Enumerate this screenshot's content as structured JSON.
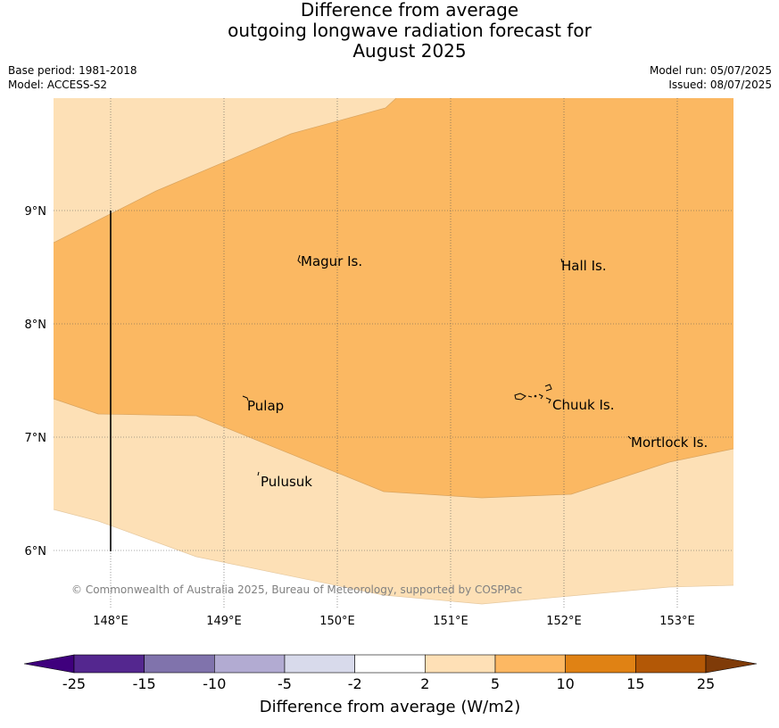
{
  "title": {
    "line1": "Difference from average",
    "line2": "outgoing longwave radiation forecast for",
    "line3": "August 2025"
  },
  "meta": {
    "base_period": "Base period: 1981-2018",
    "model": "Model: ACCESS-S2",
    "model_run": "Model run: 05/07/2025",
    "issued": "Issued: 08/07/2025"
  },
  "map": {
    "lon_ticks": [
      "148°E",
      "149°E",
      "150°E",
      "151°E",
      "152°E",
      "153°E"
    ],
    "lat_ticks": [
      "9°N",
      "8°N",
      "7°N",
      "6°N"
    ],
    "places": [
      {
        "name": "Magur Is."
      },
      {
        "name": "Hall Is."
      },
      {
        "name": "Pulap"
      },
      {
        "name": "Chuuk Is."
      },
      {
        "name": "Mortlock Is."
      },
      {
        "name": "Pulusuk"
      }
    ],
    "copyright": "© Commonwealth of Australia 2025, Bureau of Meteorology, supported by COSPPac",
    "fill_colors": {
      "low": "#fde0b6",
      "high": "#fbb862"
    }
  },
  "colorbar": {
    "colors": [
      "#3f007d",
      "#54278f",
      "#8073ac",
      "#b2abd2",
      "#d8daeb",
      "#ffffff",
      "#fee0b6",
      "#fdb863",
      "#e08214",
      "#b35806",
      "#7f3b08"
    ],
    "labels": [
      "-25",
      "-15",
      "-10",
      "-5",
      "-2",
      "2",
      "5",
      "10",
      "15",
      "25"
    ],
    "axis_label": "Difference from average (W/m2)"
  }
}
